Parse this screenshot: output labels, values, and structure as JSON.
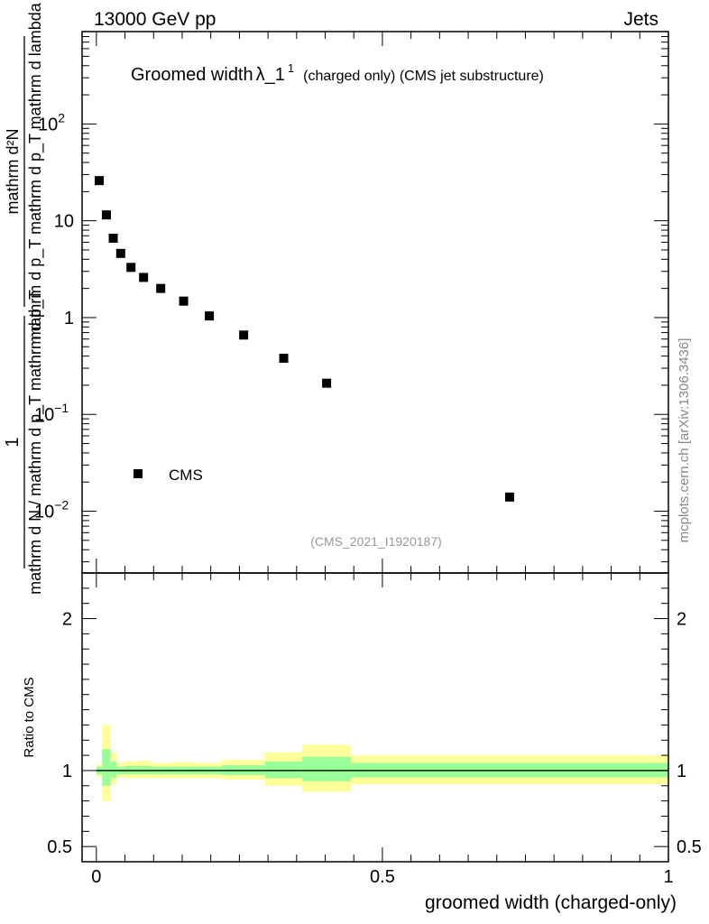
{
  "header": {
    "left": "13000 GeV pp",
    "right": "Jets"
  },
  "side_label": "mcplots.cern.ch [arXiv:1306.3436]",
  "chart_data": [
    {
      "type": "scatter",
      "title": "Groomed width",
      "title_symbol": "λ_1",
      "title_sup": "1",
      "title_suffix": "(charged only) (CMS jet substructure)",
      "analysis": "(CMS_2021_I1920187)",
      "ylabel_numerator": "mathrm d²N",
      "ylabel_denominator": "mathrm d p_T mathrm d p_T mathrm d lambda",
      "ylabel_prefix_num": "1",
      "ylabel_prefix_den": "mathrm d N / mathrm d p_T mathrm d p_T",
      "y_scale": "log",
      "ylim": [
        0.0023,
        900
      ],
      "xlim": [
        -0.025,
        1.0
      ],
      "y_ticks": [
        {
          "value": 100,
          "base": "10",
          "exp": "2"
        },
        {
          "value": 10,
          "base": "10",
          "exp": ""
        },
        {
          "value": 1,
          "base": "1",
          "exp": ""
        },
        {
          "value": 0.1,
          "base": "10",
          "exp": "−1"
        },
        {
          "value": 0.01,
          "base": "10",
          "exp": "−2"
        }
      ],
      "legend": {
        "placement": "lower-left",
        "entries": [
          "CMS"
        ]
      },
      "series": [
        {
          "name": "CMS",
          "marker": "square",
          "color": "#000000",
          "x": [
            0.005,
            0.0175,
            0.0295,
            0.0425,
            0.0605,
            0.0825,
            0.1125,
            0.1525,
            0.1975,
            0.2575,
            0.3275,
            0.4025,
            0.7225
          ],
          "y": [
            26.0,
            11.5,
            6.6,
            4.6,
            3.3,
            2.6,
            2.0,
            1.48,
            1.04,
            0.66,
            0.38,
            0.21,
            0.014
          ]
        }
      ]
    },
    {
      "type": "area",
      "ylabel": "Ratio to CMS",
      "xlabel": "groomed width (charged-only)",
      "xlim": [
        -0.025,
        1.0
      ],
      "ylim": [
        0.4,
        2.3
      ],
      "x_ticks": [
        {
          "value": 0,
          "label": "0"
        },
        {
          "value": 0.5,
          "label": "0.5"
        },
        {
          "value": 1,
          "label": "1"
        }
      ],
      "y_ticks": [
        {
          "value": 2,
          "label": "2"
        },
        {
          "value": 1,
          "label": "1"
        },
        {
          "value": 0.5,
          "label": "0.5"
        }
      ],
      "reference_line": 1,
      "colors": {
        "inner_band": "#99ff99",
        "outer_band": "#ffff99",
        "line": "#000000"
      },
      "bands": [
        {
          "x0": 0.0,
          "x1": 0.01,
          "in_lo": 0.975,
          "in_hi": 1.025,
          "out_lo": 0.96,
          "out_hi": 1.04
        },
        {
          "x0": 0.01,
          "x1": 0.025,
          "in_lo": 0.9,
          "in_hi": 1.14,
          "out_lo": 0.8,
          "out_hi": 1.3
        },
        {
          "x0": 0.025,
          "x1": 0.035,
          "in_lo": 0.95,
          "in_hi": 1.06,
          "out_lo": 0.91,
          "out_hi": 1.12
        },
        {
          "x0": 0.035,
          "x1": 0.05,
          "in_lo": 0.975,
          "in_hi": 1.025,
          "out_lo": 0.955,
          "out_hi": 1.05
        },
        {
          "x0": 0.05,
          "x1": 0.07,
          "in_lo": 0.975,
          "in_hi": 1.03,
          "out_lo": 0.95,
          "out_hi": 1.06
        },
        {
          "x0": 0.07,
          "x1": 0.095,
          "in_lo": 0.975,
          "in_hi": 1.03,
          "out_lo": 0.95,
          "out_hi": 1.065
        },
        {
          "x0": 0.095,
          "x1": 0.13,
          "in_lo": 0.975,
          "in_hi": 1.025,
          "out_lo": 0.95,
          "out_hi": 1.05
        },
        {
          "x0": 0.13,
          "x1": 0.175,
          "in_lo": 0.975,
          "in_hi": 1.025,
          "out_lo": 0.95,
          "out_hi": 1.055
        },
        {
          "x0": 0.175,
          "x1": 0.22,
          "in_lo": 0.975,
          "in_hi": 1.025,
          "out_lo": 0.95,
          "out_hi": 1.05
        },
        {
          "x0": 0.22,
          "x1": 0.295,
          "in_lo": 0.97,
          "in_hi": 1.035,
          "out_lo": 0.94,
          "out_hi": 1.07
        },
        {
          "x0": 0.295,
          "x1": 0.36,
          "in_lo": 0.95,
          "in_hi": 1.06,
          "out_lo": 0.9,
          "out_hi": 1.12
        },
        {
          "x0": 0.36,
          "x1": 0.445,
          "in_lo": 0.93,
          "in_hi": 1.09,
          "out_lo": 0.86,
          "out_hi": 1.17
        },
        {
          "x0": 0.445,
          "x1": 1.0,
          "in_lo": 0.955,
          "in_hi": 1.05,
          "out_lo": 0.91,
          "out_hi": 1.1
        }
      ]
    }
  ]
}
